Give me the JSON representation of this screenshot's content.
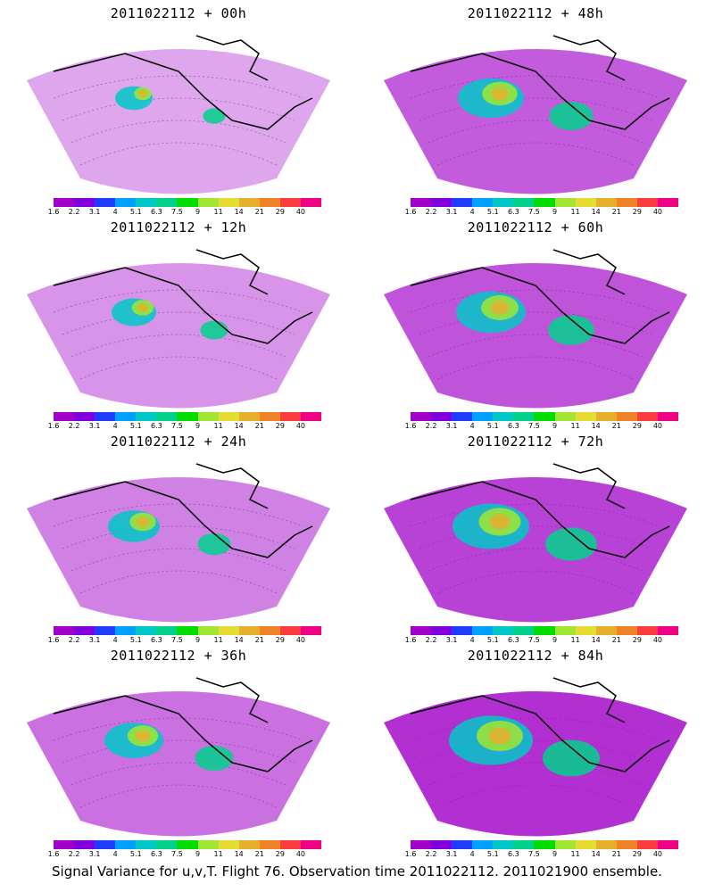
{
  "caption": "Signal Variance for u,v,T. Flight 76. Observation time 2011022112. 2011021900 ensemble.",
  "colorbar": {
    "labels": [
      "1.6",
      "2.2",
      "3.1",
      "4",
      "5.1",
      "6.3",
      "7.5",
      "9",
      "11",
      "14",
      "21",
      "29",
      "40"
    ],
    "colors": [
      "#a000c8",
      "#8200dc",
      "#1e3cff",
      "#00a0ff",
      "#00c8c8",
      "#00d28c",
      "#00dc00",
      "#a0e632",
      "#e6dc32",
      "#e6af2d",
      "#f08228",
      "#fa3c3c",
      "#f00082"
    ]
  },
  "panels": [
    {
      "title": "2011022112 + 00h",
      "intensity": 0.15
    },
    {
      "title": "2011022112 + 48h",
      "intensity": 0.55
    },
    {
      "title": "2011022112 + 12h",
      "intensity": 0.25
    },
    {
      "title": "2011022112 + 60h",
      "intensity": 0.6
    },
    {
      "title": "2011022112 + 24h",
      "intensity": 0.35
    },
    {
      "title": "2011022112 + 72h",
      "intensity": 0.7
    },
    {
      "title": "2011022112 + 36h",
      "intensity": 0.45
    },
    {
      "title": "2011022112 + 84h",
      "intensity": 0.8
    }
  ]
}
